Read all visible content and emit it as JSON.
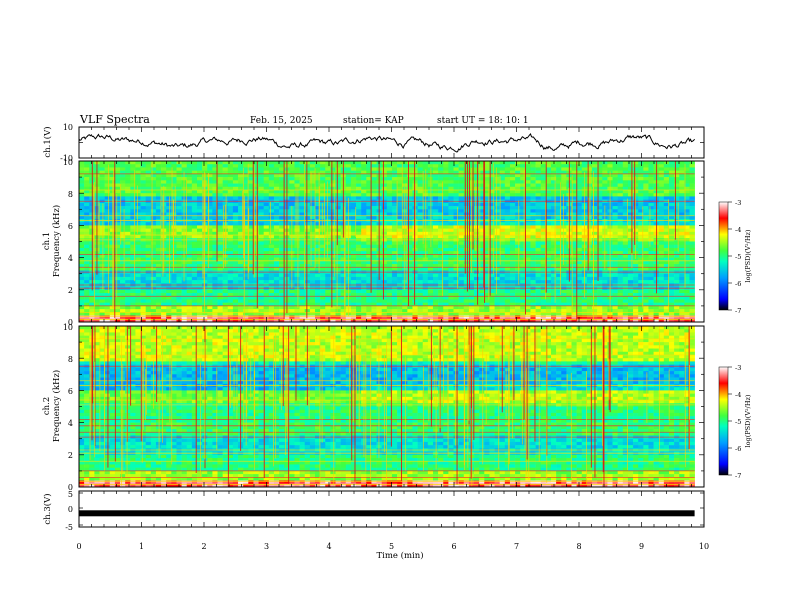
{
  "header": {
    "title": "VLF Spectra",
    "date": "Feb. 15, 2025",
    "station": "station= KAP",
    "start": "start UT =  18: 10: 1"
  },
  "chart_data": [
    {
      "type": "line",
      "name": "ch1-voltage",
      "ylabel": "ch.1(V)",
      "ylim": [
        -10,
        10
      ],
      "ytick_labels": [
        "10",
        "-10"
      ],
      "xlim": [
        0,
        10
      ],
      "series": [
        {
          "name": "ch.1(V)",
          "shape": "noisy trace between about -7 and 7 V, ending near 9.85 min"
        }
      ]
    },
    {
      "type": "heatmap",
      "name": "ch1-spectrogram",
      "ylabel": "ch.1",
      "ylabel2": "Frequency (kHz)",
      "ylim": [
        0,
        10
      ],
      "ytick_labels": [
        "0",
        "2",
        "4",
        "6",
        "8",
        "10"
      ],
      "xlim": [
        0,
        10
      ],
      "data_end_min": 9.85,
      "colorbar": {
        "label": "log(PSD)(V²/Hz)",
        "range": [
          -7,
          -3
        ],
        "tick_labels": [
          "-3",
          "-4",
          "-5",
          "-6",
          "-7"
        ]
      }
    },
    {
      "type": "heatmap",
      "name": "ch2-spectrogram",
      "ylabel": "ch.2",
      "ylabel2": "Frequency (kHz)",
      "ylim": [
        0,
        10
      ],
      "ytick_labels": [
        "0",
        "2",
        "4",
        "6",
        "8",
        "10"
      ],
      "xlim": [
        0,
        10
      ],
      "data_end_min": 9.85,
      "colorbar": {
        "label": "log(PSD)(V²/Hz)",
        "range": [
          -7,
          -3
        ],
        "tick_labels": [
          "-3",
          "-4",
          "-5",
          "-6",
          "-7"
        ]
      }
    },
    {
      "type": "line",
      "name": "ch3-voltage",
      "ylabel": "ch.3(V)",
      "ylim": [
        -5,
        5
      ],
      "ytick_labels": [
        "5",
        "0",
        "-5"
      ],
      "xlim": [
        0,
        10
      ],
      "xlabel": "Time (min)",
      "xtick_labels": [
        "0",
        "1",
        "2",
        "3",
        "4",
        "5",
        "6",
        "7",
        "8",
        "9",
        "10"
      ],
      "series": [
        {
          "name": "ch.3(V)",
          "shape": "flat, about -1.2 V, thick line",
          "level": -1.2
        }
      ]
    }
  ]
}
